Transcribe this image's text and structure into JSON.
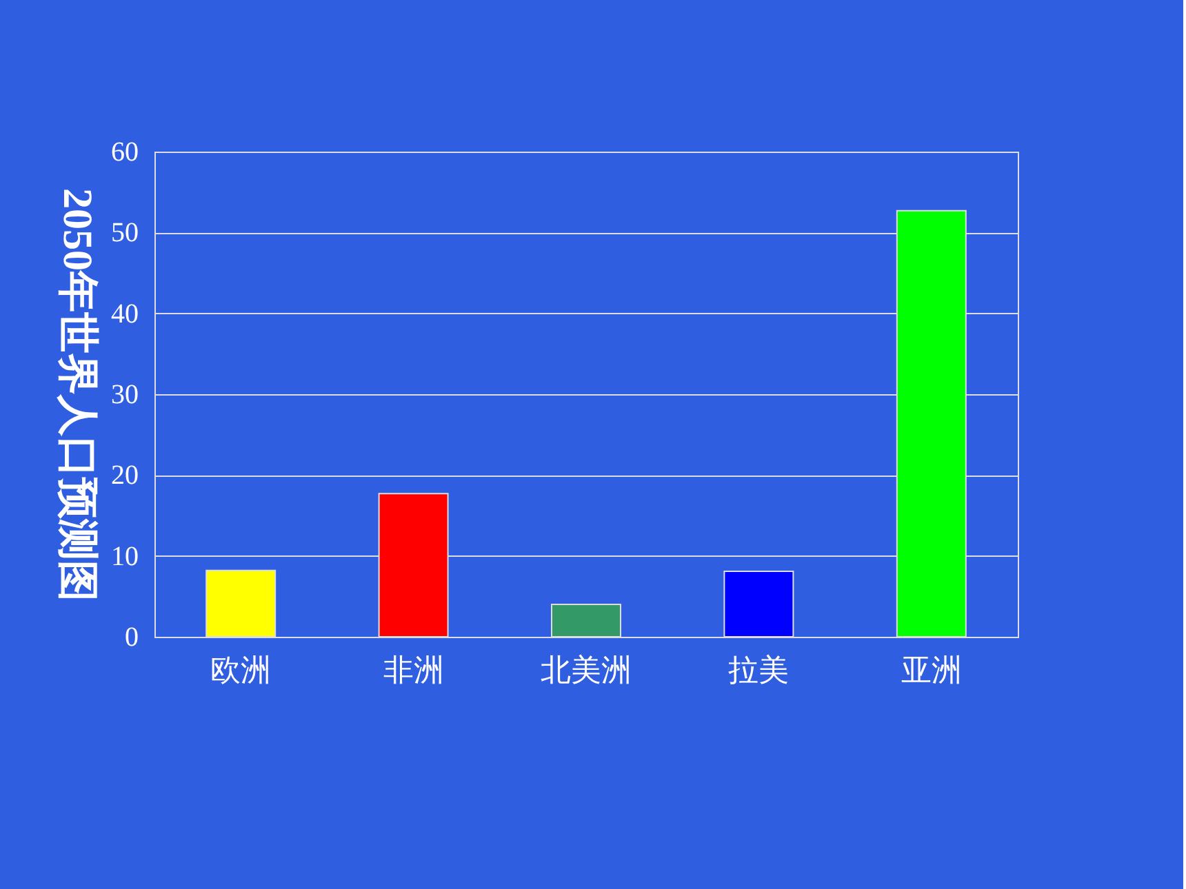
{
  "chart_data": {
    "type": "bar",
    "ylabel": "2050年世界人口预测图",
    "categories": [
      "欧洲",
      "非洲",
      "北美洲",
      "拉美",
      "亚洲"
    ],
    "values": [
      8.2,
      17.7,
      4.0,
      8.1,
      52.7
    ],
    "colors": [
      "#ffff00",
      "#ff0000",
      "#339966",
      "#0000ff",
      "#00ff00"
    ],
    "ylim": [
      0,
      60
    ],
    "yticks": [
      0,
      10,
      20,
      30,
      40,
      50,
      60
    ],
    "grid": "y"
  }
}
